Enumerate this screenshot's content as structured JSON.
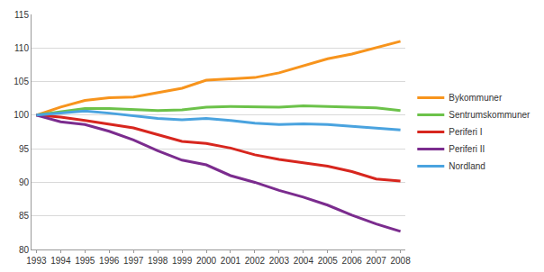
{
  "chart_data": {
    "type": "line",
    "x": [
      1993,
      1994,
      1995,
      1996,
      1997,
      1998,
      1999,
      2000,
      2001,
      2002,
      2003,
      2004,
      2005,
      2006,
      2007,
      2008
    ],
    "series": [
      {
        "name": "Bykommuner",
        "color": "#f7941d",
        "values": [
          100,
          101.2,
          102.2,
          102.6,
          102.7,
          103.4,
          104,
          105.2,
          105.4,
          105.6,
          106.3,
          107.3,
          108.4,
          109.1,
          110,
          111
        ]
      },
      {
        "name": "Sentrumskommuner",
        "color": "#6cc24a",
        "values": [
          100,
          100.5,
          101,
          101,
          100.8,
          100.7,
          100.8,
          101.2,
          101.3,
          101.2,
          101.2,
          101.4,
          101.3,
          101.3,
          101.1,
          100.7
        ]
      },
      {
        "name": "Periferi I",
        "color": "#d7261e",
        "values": [
          100,
          99.7,
          99.2,
          98.7,
          98.1,
          97.1,
          96.1,
          95.8,
          95.1,
          94.1,
          93.4,
          92.9,
          92.4,
          91.6,
          90.5,
          90.2
        ]
      },
      {
        "name": "Periferi II",
        "color": "#7b2c8e",
        "values": [
          100,
          99,
          98.6,
          97.6,
          96.3,
          94.7,
          93.3,
          92.6,
          91,
          90,
          88.8,
          87.8,
          86.6,
          85.1,
          83.8,
          82.7
        ]
      },
      {
        "name": "Nordland",
        "color": "#4aa3df",
        "values": [
          100,
          100.3,
          100.6,
          100.3,
          99.9,
          99.5,
          99.3,
          99.5,
          99.2,
          98.8,
          98.6,
          98.7,
          98.6,
          98.3,
          98,
          97.8
        ]
      }
    ],
    "xlim": [
      1992.8,
      2008.2
    ],
    "xticks": [
      1993,
      1994,
      1995,
      1996,
      1997,
      1998,
      1999,
      2000,
      2001,
      2002,
      2003,
      2004,
      2005,
      2006,
      2007,
      2008
    ],
    "ylim": [
      80,
      115
    ],
    "yticks": [
      80,
      85,
      90,
      95,
      100,
      105,
      110,
      115
    ],
    "grid": true,
    "legend": "right"
  }
}
